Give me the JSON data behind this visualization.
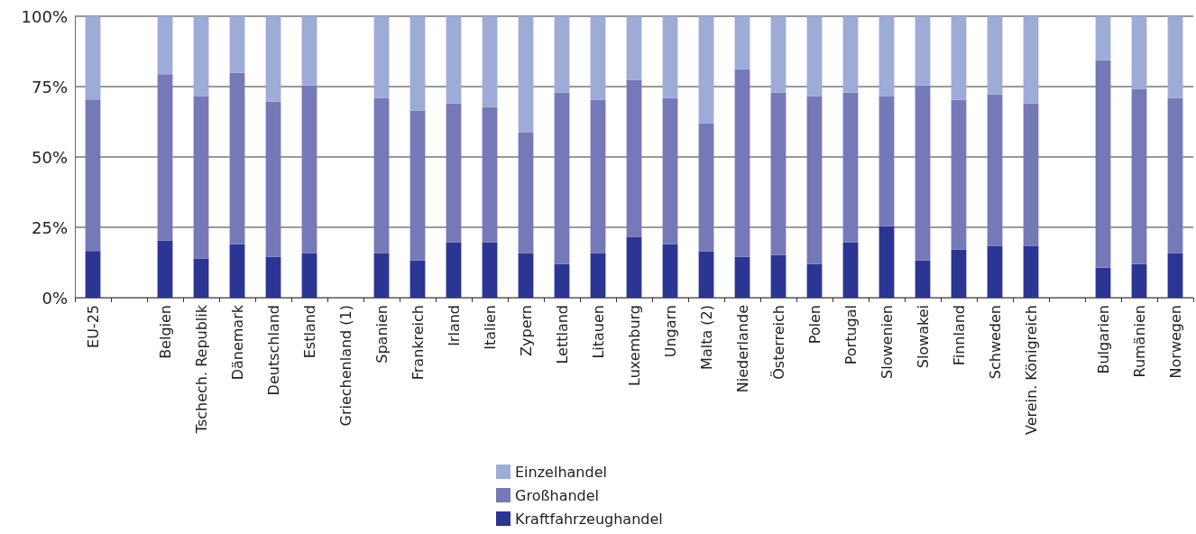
{
  "chart_data": {
    "type": "bar",
    "stacked": true,
    "categories": [
      "EU-25",
      null,
      "Belgien",
      "Tschech. Republik",
      "Dänemark",
      "Deutschland",
      "Estland",
      "Griechenland (1)",
      "Spanien",
      "Frankreich",
      "Irland",
      "Italien",
      "Zypern",
      "Lettland",
      "Litauen",
      "Luxemburg",
      "Ungarn",
      "Malta (2)",
      "Niederlande",
      "Österreich",
      "Polen",
      "Portugal",
      "Slowenien",
      "Slowakei",
      "Finnland",
      "Schweden",
      "Verein. Königreich",
      null,
      "Bulgarien",
      "Rumänien",
      "Norwegen"
    ],
    "series": [
      {
        "name": "Kraftfahrzeughandel",
        "color": "#2b3593",
        "values": [
          16.6,
          null,
          20.3,
          13.9,
          19.0,
          14.5,
          15.8,
          null,
          15.8,
          13.2,
          19.7,
          19.7,
          15.8,
          12.0,
          15.8,
          21.6,
          19.0,
          16.5,
          14.5,
          15.2,
          12.0,
          19.7,
          25.4,
          13.2,
          17.1,
          18.4,
          18.4,
          null,
          10.7,
          12.0,
          15.8
        ]
      },
      {
        "name": "Großhandel",
        "color": "#7579b8",
        "values": [
          53.8,
          null,
          59.1,
          57.7,
          60.9,
          55.2,
          59.6,
          null,
          55.1,
          53.3,
          49.3,
          48.0,
          43.0,
          60.9,
          54.5,
          55.8,
          51.9,
          45.5,
          66.7,
          57.7,
          59.6,
          53.2,
          46.2,
          62.2,
          53.2,
          53.8,
          50.6,
          null,
          73.7,
          62.1,
          55.1
        ]
      },
      {
        "name": "Einzelhandel",
        "color": "#9dabd7",
        "values": [
          29.6,
          null,
          20.6,
          28.4,
          20.1,
          30.3,
          24.6,
          null,
          29.1,
          33.5,
          31.0,
          32.3,
          41.2,
          27.1,
          29.7,
          22.6,
          29.1,
          38.0,
          18.8,
          27.1,
          28.4,
          27.1,
          28.4,
          24.6,
          29.7,
          27.8,
          31.0,
          null,
          15.6,
          25.9,
          29.1
        ]
      }
    ],
    "ylim": [
      0,
      100
    ],
    "yticks": [
      {
        "value": 0,
        "label": "0%"
      },
      {
        "value": 25,
        "label": "25%"
      },
      {
        "value": 50,
        "label": "50%"
      },
      {
        "value": 75,
        "label": "75%"
      },
      {
        "value": 100,
        "label": "100%"
      }
    ],
    "grid": "y",
    "legend": "bottom"
  }
}
